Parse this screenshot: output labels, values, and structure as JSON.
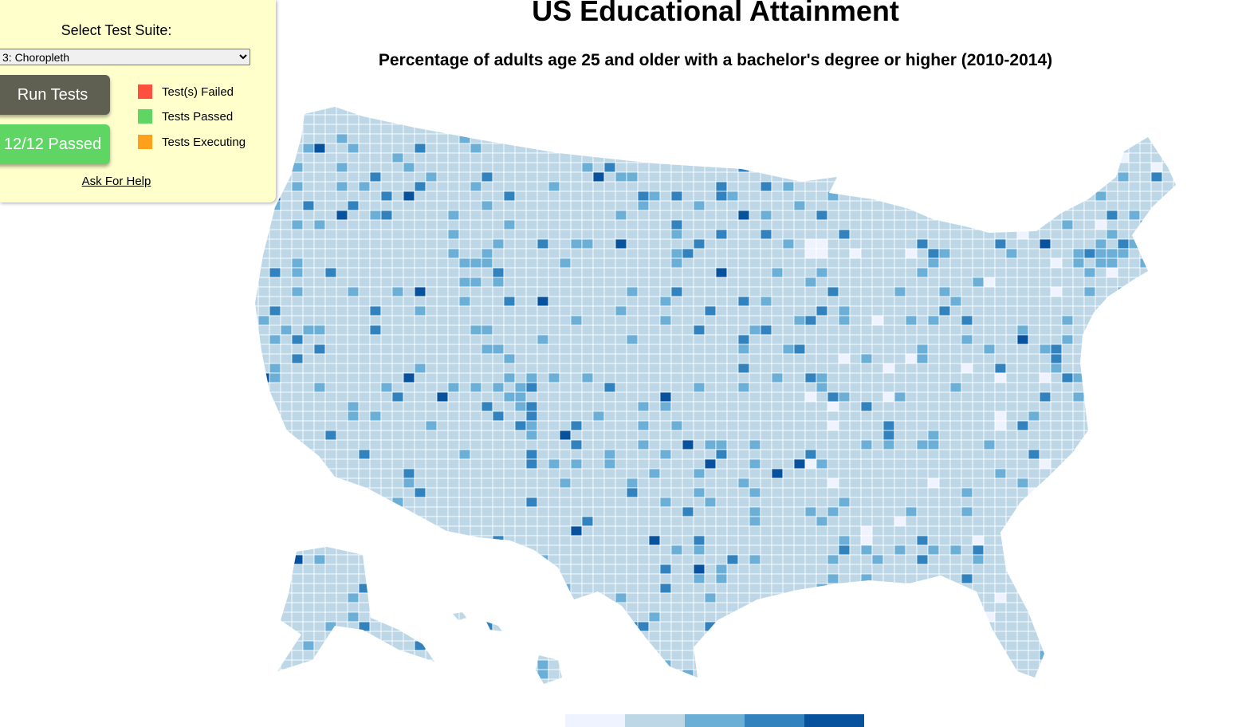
{
  "panel": {
    "suite_label": "Select Test Suite:",
    "suite_selected": "3: Choropleth",
    "run_button": "Run Tests",
    "status_button": "12/12 Passed",
    "legend": [
      {
        "label": "Test(s) Failed",
        "color": "#ff4f3f"
      },
      {
        "label": "Tests Passed",
        "color": "#5fd563"
      },
      {
        "label": "Tests Executing",
        "color": "#ffa01c"
      }
    ],
    "help_link": "Ask For Help"
  },
  "map": {
    "title": "US Educational Attainment",
    "subtitle": "Percentage of adults age 25 and older with a bachelor's degree or higher (2010-2014)",
    "color_scale": [
      "#eef3ff",
      "#bdd7e7",
      "#6baed6",
      "#3182bd",
      "#08519c"
    ],
    "border_color": "#ffffff"
  }
}
